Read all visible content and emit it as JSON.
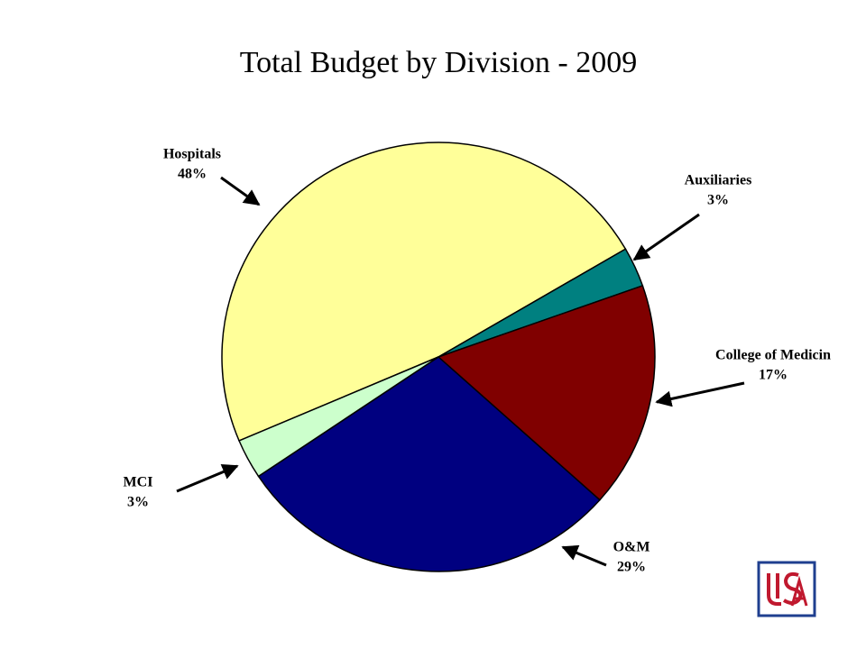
{
  "chart_data": {
    "type": "pie",
    "title": "Total Budget by Division - 2009",
    "categories": [
      "Hospitals",
      "Auxiliaries",
      "College of Medicin",
      "O&M",
      "MCI"
    ],
    "values": [
      48,
      3,
      17,
      29,
      3
    ],
    "value_labels": [
      "48%",
      "3%",
      "17%",
      "29%",
      "3%"
    ],
    "colors": [
      "#ffff99",
      "#008080",
      "#800000",
      "#000080",
      "#ccffcc"
    ]
  }
}
